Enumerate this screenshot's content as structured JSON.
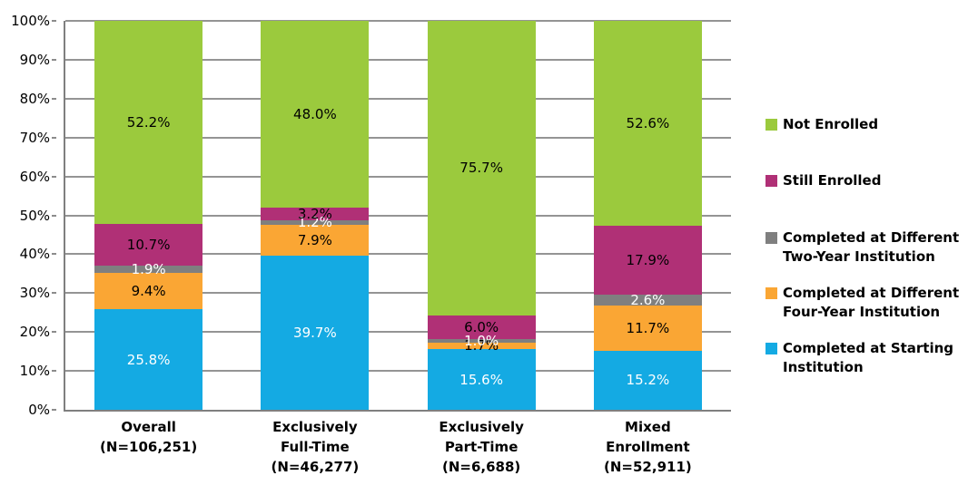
{
  "chart_data": {
    "type": "bar",
    "stacked": true,
    "title": "",
    "xlabel": "",
    "ylabel": "",
    "grid": true,
    "legend_position": "right",
    "y_axis": {
      "min": 0,
      "max": 100,
      "step": 10,
      "tick_suffix": "%"
    },
    "categories": [
      {
        "lines": [
          "Overall",
          "(N=106,251)"
        ]
      },
      {
        "lines": [
          "Exclusively",
          "Full-Time",
          "(N=46,277)"
        ]
      },
      {
        "lines": [
          "Exclusively",
          "Part-Time",
          "(N=6,688)"
        ]
      },
      {
        "lines": [
          "Mixed",
          "Enrollment",
          "(N=52,911)"
        ]
      }
    ],
    "series": [
      {
        "name": "Completed at Starting Institution",
        "color": "#14aae3",
        "label_color": "#ffffff",
        "values": [
          25.8,
          39.7,
          15.6,
          15.2
        ]
      },
      {
        "name": "Completed at Different Four-Year Institution",
        "color": "#faa634",
        "label_color": "#000000",
        "values": [
          9.4,
          7.9,
          1.7,
          11.7
        ]
      },
      {
        "name": "Completed at Different Two-Year Institution",
        "color": "#7f7f7f",
        "label_color": "#ffffff",
        "values": [
          1.9,
          1.2,
          1.0,
          2.6
        ]
      },
      {
        "name": "Still Enrolled",
        "color": "#b03076",
        "label_color": "#000000",
        "values": [
          10.7,
          3.2,
          6.0,
          17.9
        ]
      },
      {
        "name": "Not Enrolled",
        "color": "#9bca3d",
        "label_color": "#000000",
        "values": [
          52.2,
          48.0,
          75.7,
          52.6
        ]
      }
    ],
    "legend": [
      {
        "color": "#9bca3d",
        "lines": [
          "Not Enrolled"
        ]
      },
      {
        "color": "#b03076",
        "lines": [
          "Still Enrolled"
        ]
      },
      {
        "color": "#7f7f7f",
        "lines": [
          "Completed at Different",
          "Two-Year Institution"
        ]
      },
      {
        "color": "#faa634",
        "lines": [
          "Completed at Different",
          "Four-Year Institution"
        ]
      },
      {
        "color": "#14aae3",
        "lines": [
          "Completed at Starting",
          "Institution"
        ]
      }
    ],
    "colors": {
      "gridline": "#949494",
      "axis": "#7f7f7f",
      "background": "#ffffff"
    }
  }
}
